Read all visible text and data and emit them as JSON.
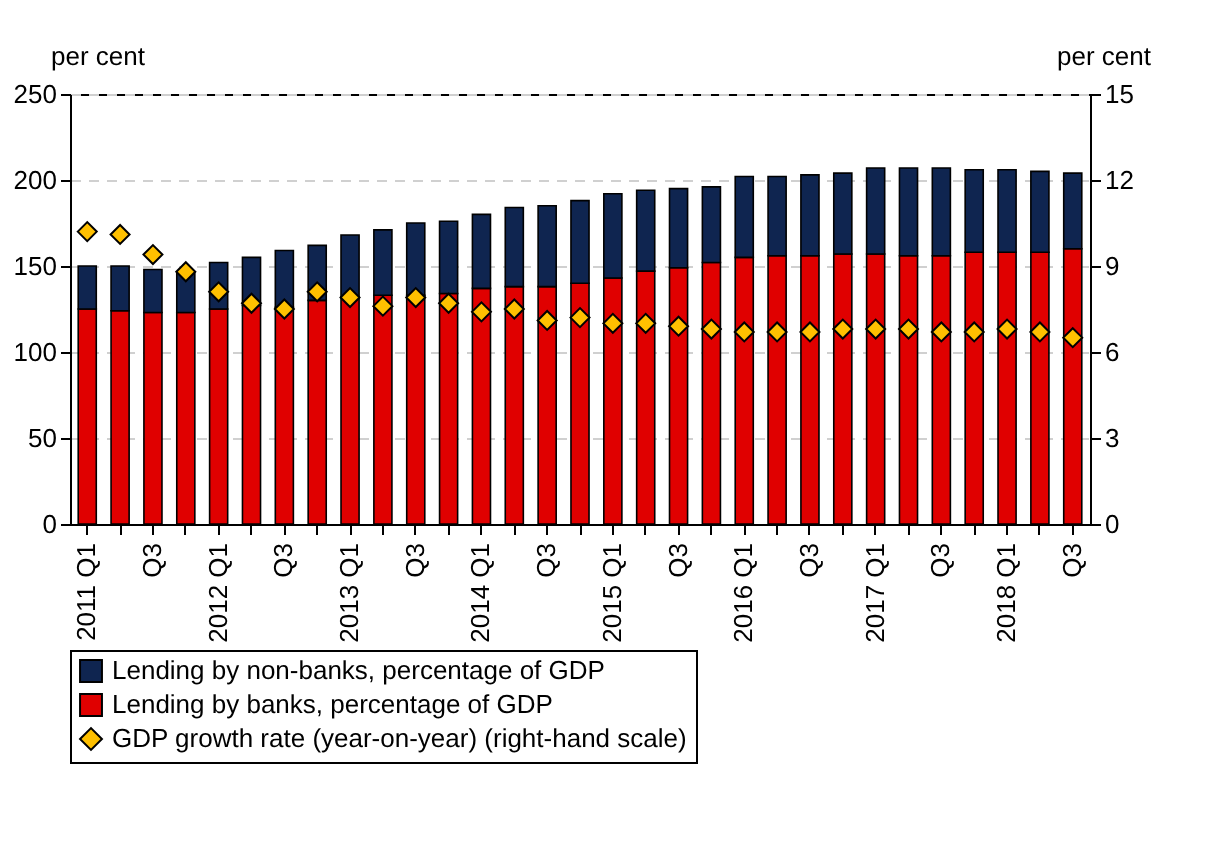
{
  "chart_data": {
    "type": "bar",
    "stacked": true,
    "categories": [
      "2011 Q1",
      null,
      "Q3",
      null,
      "2012 Q1",
      null,
      "Q3",
      null,
      "2013 Q1",
      null,
      "Q3",
      null,
      "2014 Q1",
      null,
      "Q3",
      null,
      "2015 Q1",
      null,
      "Q3",
      null,
      "2016 Q1",
      null,
      "Q3",
      null,
      "2017 Q1",
      null,
      "Q3",
      null,
      "2018 Q1",
      null,
      "Q3"
    ],
    "series": [
      {
        "name": "Lending by banks, percentage of GDP",
        "color": "#e00000",
        "values": [
          125,
          124,
          123,
          123,
          125,
          127,
          126,
          130,
          132,
          133,
          133,
          134,
          137,
          138,
          138,
          140,
          143,
          147,
          149,
          152,
          155,
          156,
          156,
          157,
          157,
          156,
          156,
          158,
          158,
          158,
          160
        ]
      },
      {
        "name": "Lending by non-banks, percentage of GDP",
        "color": "#0f2550",
        "values": [
          25,
          26,
          25,
          23,
          27,
          28,
          33,
          32,
          36,
          38,
          42,
          42,
          43,
          46,
          47,
          48,
          49,
          47,
          46,
          44,
          47,
          46,
          47,
          47,
          50,
          51,
          51,
          48,
          48,
          47,
          44
        ]
      },
      {
        "name": "GDP growth rate (year-on-year) (right-hand scale)",
        "type": "scatter",
        "axis": "y2",
        "color": "#ffc000",
        "values": [
          10.2,
          10.1,
          9.4,
          8.8,
          8.1,
          7.7,
          7.5,
          8.1,
          7.9,
          7.6,
          7.9,
          7.7,
          7.4,
          7.5,
          7.1,
          7.2,
          7.0,
          7.0,
          6.9,
          6.8,
          6.7,
          6.7,
          6.7,
          6.8,
          6.8,
          6.8,
          6.7,
          6.7,
          6.8,
          6.7,
          6.5
        ]
      }
    ],
    "ylabel": "per cent",
    "y2label": "per cent",
    "ylim": [
      0,
      250
    ],
    "yticks": [
      0,
      50,
      100,
      150,
      200,
      250
    ],
    "y2lim": [
      0,
      15
    ],
    "y2ticks": [
      0,
      3,
      6,
      9,
      12,
      15
    ],
    "grid": "y",
    "legend": "bottom",
    "marker": "diamond"
  }
}
